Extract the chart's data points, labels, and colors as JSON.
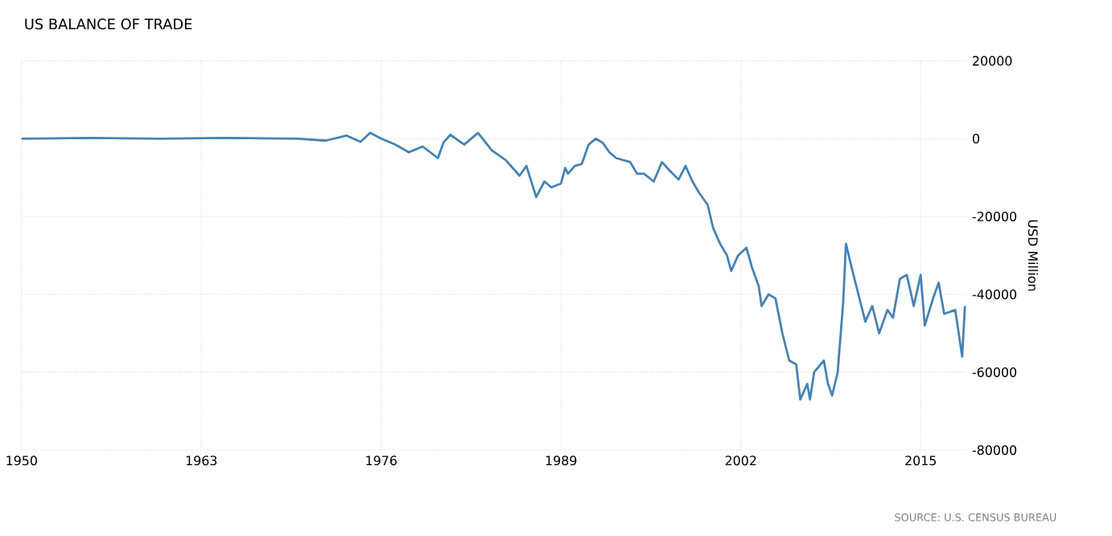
{
  "chart_data": {
    "type": "line",
    "title": "US BALANCE OF TRADE",
    "ylabel": "USD Million",
    "annotations": [
      "SOURCE: U.S. CENSUS BUREAU"
    ],
    "xlim": [
      1950,
      2018.3
    ],
    "xticks": [
      1950,
      1963,
      1976,
      1989,
      2002,
      2015
    ],
    "ylim": [
      -80000,
      20000
    ],
    "yticks": [
      -80000,
      -60000,
      -40000,
      -20000,
      0,
      20000
    ],
    "grid": true,
    "line_style": "solid",
    "marker": "none",
    "series": [
      {
        "color": "#4682b4",
        "x": [
          1950,
          1955,
          1960,
          1965,
          1970,
          1972,
          1973.5,
          1974.5,
          1975.2,
          1976,
          1977,
          1978,
          1979,
          1980.1,
          1980.5,
          1981,
          1982,
          1983,
          1984,
          1985,
          1986,
          1986.5,
          1987.2,
          1987.8,
          1988.3,
          1989,
          1989.3,
          1989.5,
          1990,
          1990.5,
          1991,
          1991.5,
          1992,
          1992.5,
          1993,
          1994,
          1994.5,
          1995,
          1995.7,
          1996.3,
          1996.8,
          1997.5,
          1998,
          1998.5,
          1999,
          1999.6,
          2000,
          2000.5,
          2001,
          2001.3,
          2001.8,
          2002.4,
          2002.8,
          2003.3,
          2003.5,
          2004,
          2004.5,
          2005,
          2005.5,
          2006,
          2006.3,
          2006.8,
          2007,
          2007.3,
          2008,
          2008.3,
          2008.6,
          2009,
          2009.4,
          2009.6,
          2010,
          2010.5,
          2011,
          2011.5,
          2012,
          2012.6,
          2013,
          2013.5,
          2014,
          2014.5,
          2015,
          2015.3,
          2015.9,
          2016.3,
          2016.7,
          2017.5,
          2018,
          2018.2
        ],
        "values": [
          0,
          200,
          0,
          200,
          0,
          -500,
          800,
          -800,
          1500,
          0,
          -1500,
          -3500,
          -2000,
          -5000,
          -1000,
          1000,
          -1500,
          1500,
          -3000,
          -5500,
          -9500,
          -7000,
          -15000,
          -11000,
          -12500,
          -11500,
          -7500,
          -9000,
          -7000,
          -6500,
          -1500,
          0,
          -1000,
          -3500,
          -5000,
          -6000,
          -9000,
          -9000,
          -11000,
          -6000,
          -8000,
          -10500,
          -7000,
          -11000,
          -14000,
          -17000,
          -23000,
          -27000,
          -30000,
          -34000,
          -30000,
          -28000,
          -33000,
          -38000,
          -43000,
          -40000,
          -41000,
          -50000,
          -57000,
          -58000,
          -67000,
          -63000,
          -67000,
          -60000,
          -57000,
          -63000,
          -66000,
          -60000,
          -42000,
          -27000,
          -33000,
          -40000,
          -47000,
          -43000,
          -50000,
          -44000,
          -46000,
          -36000,
          -35000,
          -43000,
          -35000,
          -48000,
          -41000,
          -37000,
          -45000,
          -44000,
          -56000,
          -43000
        ]
      }
    ]
  }
}
